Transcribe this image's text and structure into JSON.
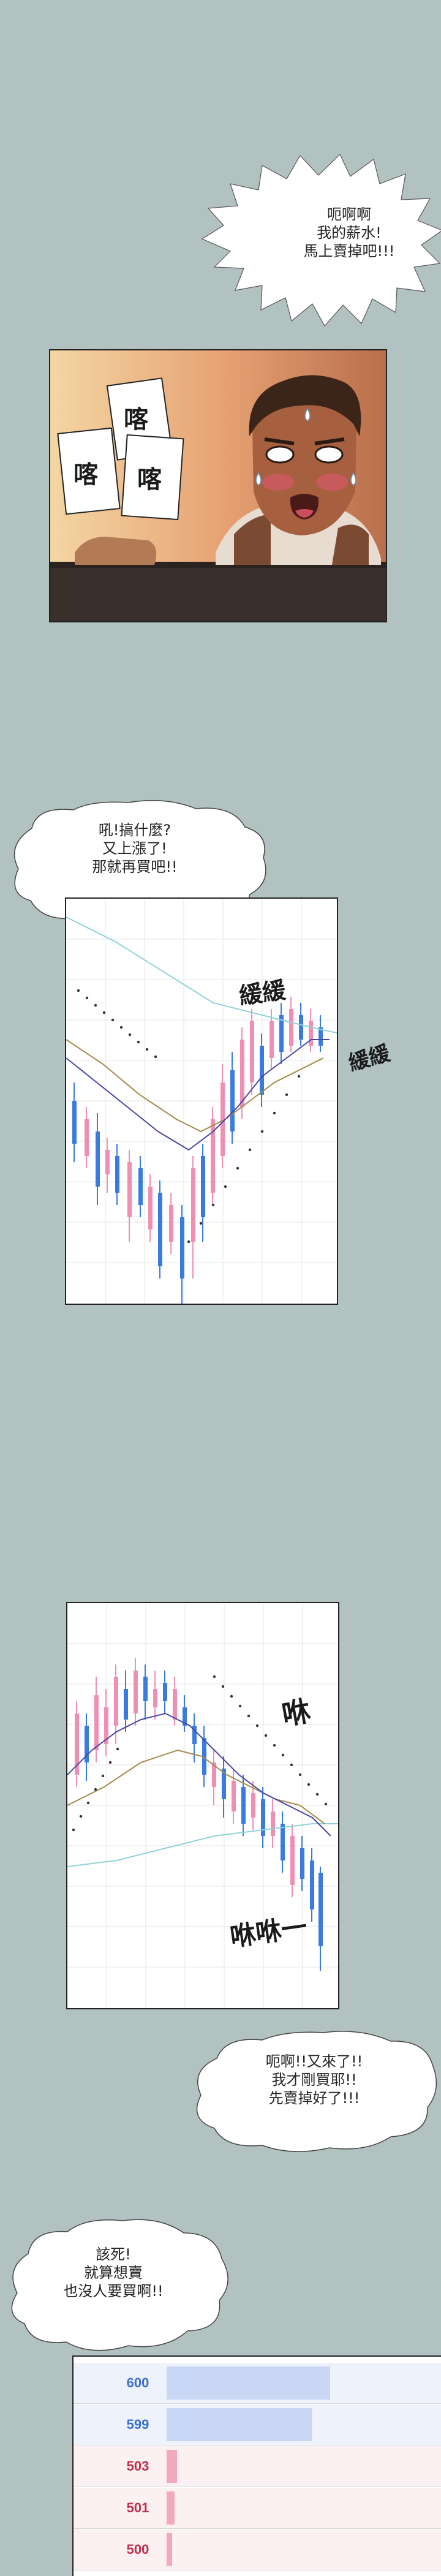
{
  "bubbles": {
    "b1": "呃啊啊\n我的薪水!\n馬上賣掉吧!!!",
    "b2": "吼!搞什麼?\n又上漲了!\n那就再買吧!!",
    "b3": "呃啊!!又來了!!\n我才剛買耶!!\n先賣掉好了!!!",
    "b4": "該死!\n就算想賣\n也沒人要買啊!!"
  },
  "panel1": {
    "sfx": [
      "喀",
      "喀",
      "喀"
    ]
  },
  "chart1": {
    "sfx_top": "緩緩",
    "sfx_side": "緩緩"
  },
  "chart2": {
    "sfx_top": "咻",
    "sfx_bottom": "咻咻一"
  },
  "orderbook": {
    "rows": [
      {
        "price": "600",
        "side": "ask",
        "color": "#3b6fd1",
        "fill": 0.62
      },
      {
        "price": "599",
        "side": "ask",
        "color": "#3b6fd1",
        "fill": 0.55
      },
      {
        "price": "503",
        "side": "bid",
        "color": "#c0304b",
        "fill": 0.04
      },
      {
        "price": "501",
        "side": "bid",
        "color": "#c0304b",
        "fill": 0.03
      },
      {
        "price": "500",
        "side": "bid",
        "color": "#c0304b",
        "fill": 0.02
      }
    ]
  },
  "colors": {
    "background": "#b2c2c1",
    "candle_up": "#f08fb4",
    "candle_down": "#3a7be0",
    "ma_long": "#8fd3d8",
    "ma_mid": "#a58a4a",
    "ma_short": "#4747a8"
  }
}
